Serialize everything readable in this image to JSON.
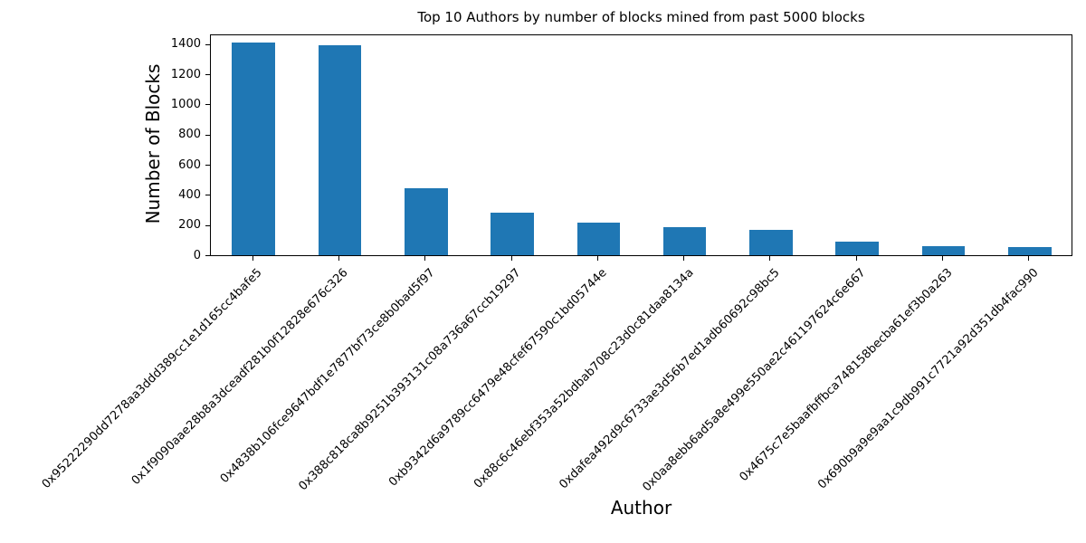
{
  "chart_data": {
    "type": "bar",
    "title": "Top 10 Authors by number of blocks mined from past 5000 blocks",
    "xlabel": "Author",
    "ylabel": "Number of Blocks",
    "categories": [
      "0x95222290dd7278aa3ddd389cc1e1d165cc4bafe5",
      "0x1f9090aae28b8a3dceadf281b0f12828e676c326",
      "0x4838b106fce9647bdf1e7877bf73ce8b0bad5f97",
      "0x388c818ca8b9251b393131c08a736a67ccb19297",
      "0xb9342d6a9789cc6479e48cfef67590c1bd05744e",
      "0x88c6c46ebf353a52bdbab708c23d0c81daa8134a",
      "0xdafea492d9c6733ae3d56b7ed1adb60692c98bc5",
      "0x0aa8ebb6ad5a8e499e550ae2c461197624c6e667",
      "0x4675c7e5baafbffbca748158becba61ef3b0a263",
      "0x690b9a9e9aa1c9db991c7721a92d351db4fac990"
    ],
    "values": [
      1410,
      1390,
      440,
      282,
      214,
      185,
      168,
      88,
      58,
      50
    ],
    "yticks": [
      0,
      200,
      400,
      600,
      800,
      1000,
      1200,
      1400
    ],
    "ylim": [
      0,
      1470
    ],
    "x_tick_rotation_deg": 45,
    "bar_width_fraction": 0.5,
    "grid": false,
    "legend": "none",
    "bar_color": "#1f77b4",
    "axis_color": "#000000",
    "background_color": "#ffffff"
  }
}
